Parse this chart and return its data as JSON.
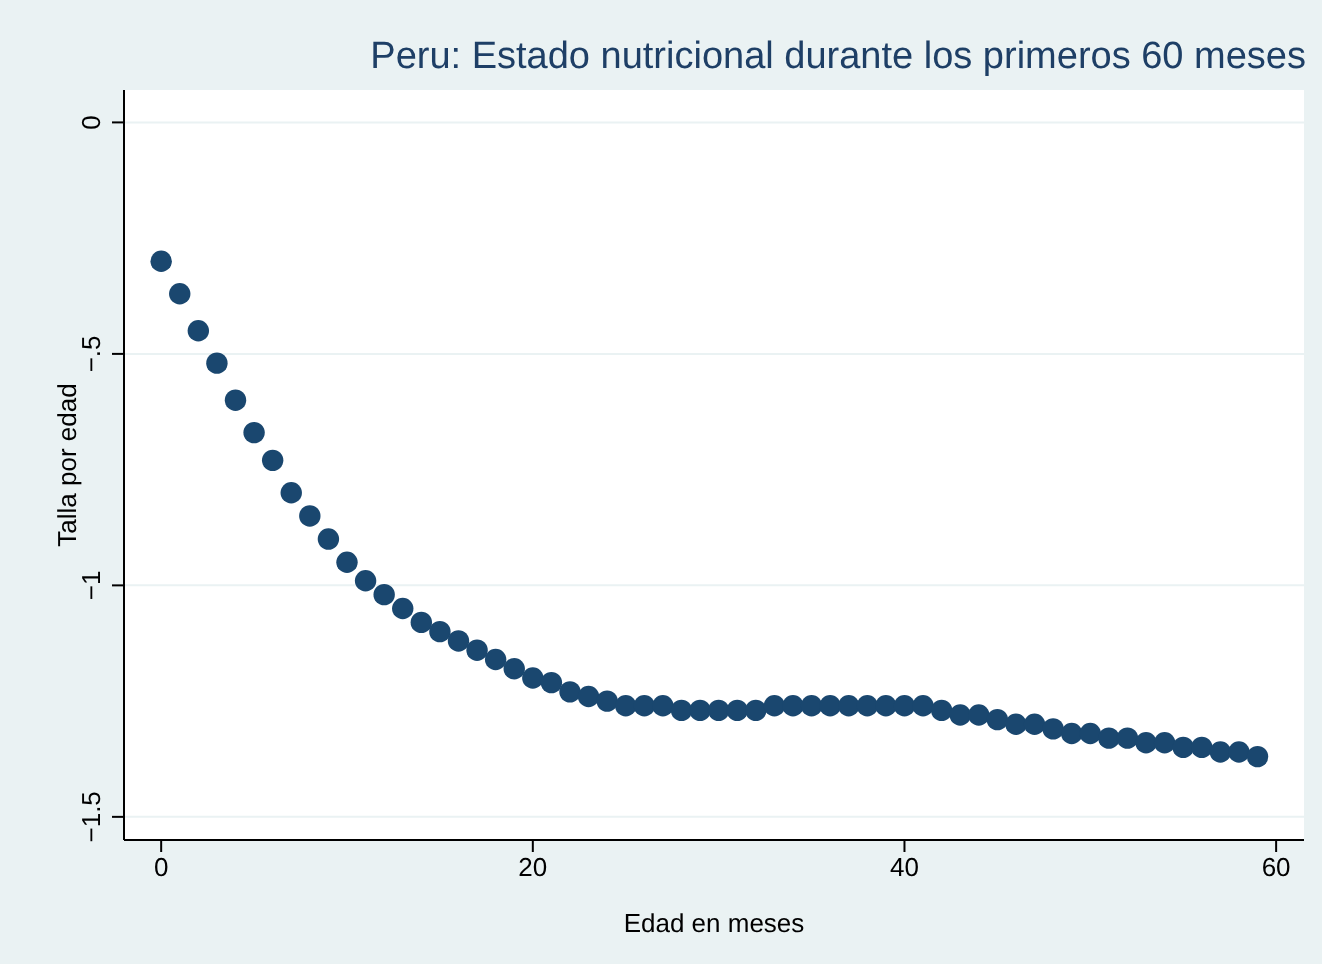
{
  "chart_data": {
    "type": "scatter",
    "title": "Peru: Estado nutricional durante los primeros 60 meses",
    "xlabel": "Edad en meses",
    "ylabel": "Talla por edad",
    "x": [
      0,
      1,
      2,
      3,
      4,
      5,
      6,
      7,
      8,
      9,
      10,
      11,
      12,
      13,
      14,
      15,
      16,
      17,
      18,
      19,
      20,
      21,
      22,
      23,
      24,
      25,
      26,
      27,
      28,
      29,
      30,
      31,
      32,
      33,
      34,
      35,
      36,
      37,
      38,
      39,
      40,
      41,
      42,
      43,
      44,
      45,
      46,
      47,
      48,
      49,
      50,
      51,
      52,
      53,
      54,
      55,
      56,
      57,
      58,
      59
    ],
    "series": [
      {
        "color": "#1a476f",
        "values": [
          -0.3,
          -0.37,
          -0.45,
          -0.52,
          -0.6,
          -0.67,
          -0.73,
          -0.8,
          -0.85,
          -0.9,
          -0.95,
          -0.99,
          -1.02,
          -1.05,
          -1.08,
          -1.1,
          -1.12,
          -1.14,
          -1.16,
          -1.18,
          -1.2,
          -1.21,
          -1.23,
          -1.24,
          -1.25,
          -1.26,
          -1.26,
          -1.26,
          -1.27,
          -1.27,
          -1.27,
          -1.27,
          -1.27,
          -1.26,
          -1.26,
          -1.26,
          -1.26,
          -1.26,
          -1.26,
          -1.26,
          -1.26,
          -1.26,
          -1.27,
          -1.28,
          -1.28,
          -1.29,
          -1.3,
          -1.3,
          -1.31,
          -1.32,
          -1.32,
          -1.33,
          -1.33,
          -1.34,
          -1.34,
          -1.35,
          -1.35,
          -1.36,
          -1.36,
          -1.37
        ]
      }
    ],
    "xlim": [
      -2,
      61.5
    ],
    "xticks": [
      0,
      20,
      40,
      60
    ],
    "ylim": [
      -1.55,
      0.07
    ],
    "yticks": [
      {
        "value": -1.5,
        "label": "−1.5"
      },
      {
        "value": -1,
        "label": "−1"
      },
      {
        "value": -0.5,
        "label": "−.5"
      },
      0
    ],
    "grid": "y",
    "marker": "circle"
  }
}
